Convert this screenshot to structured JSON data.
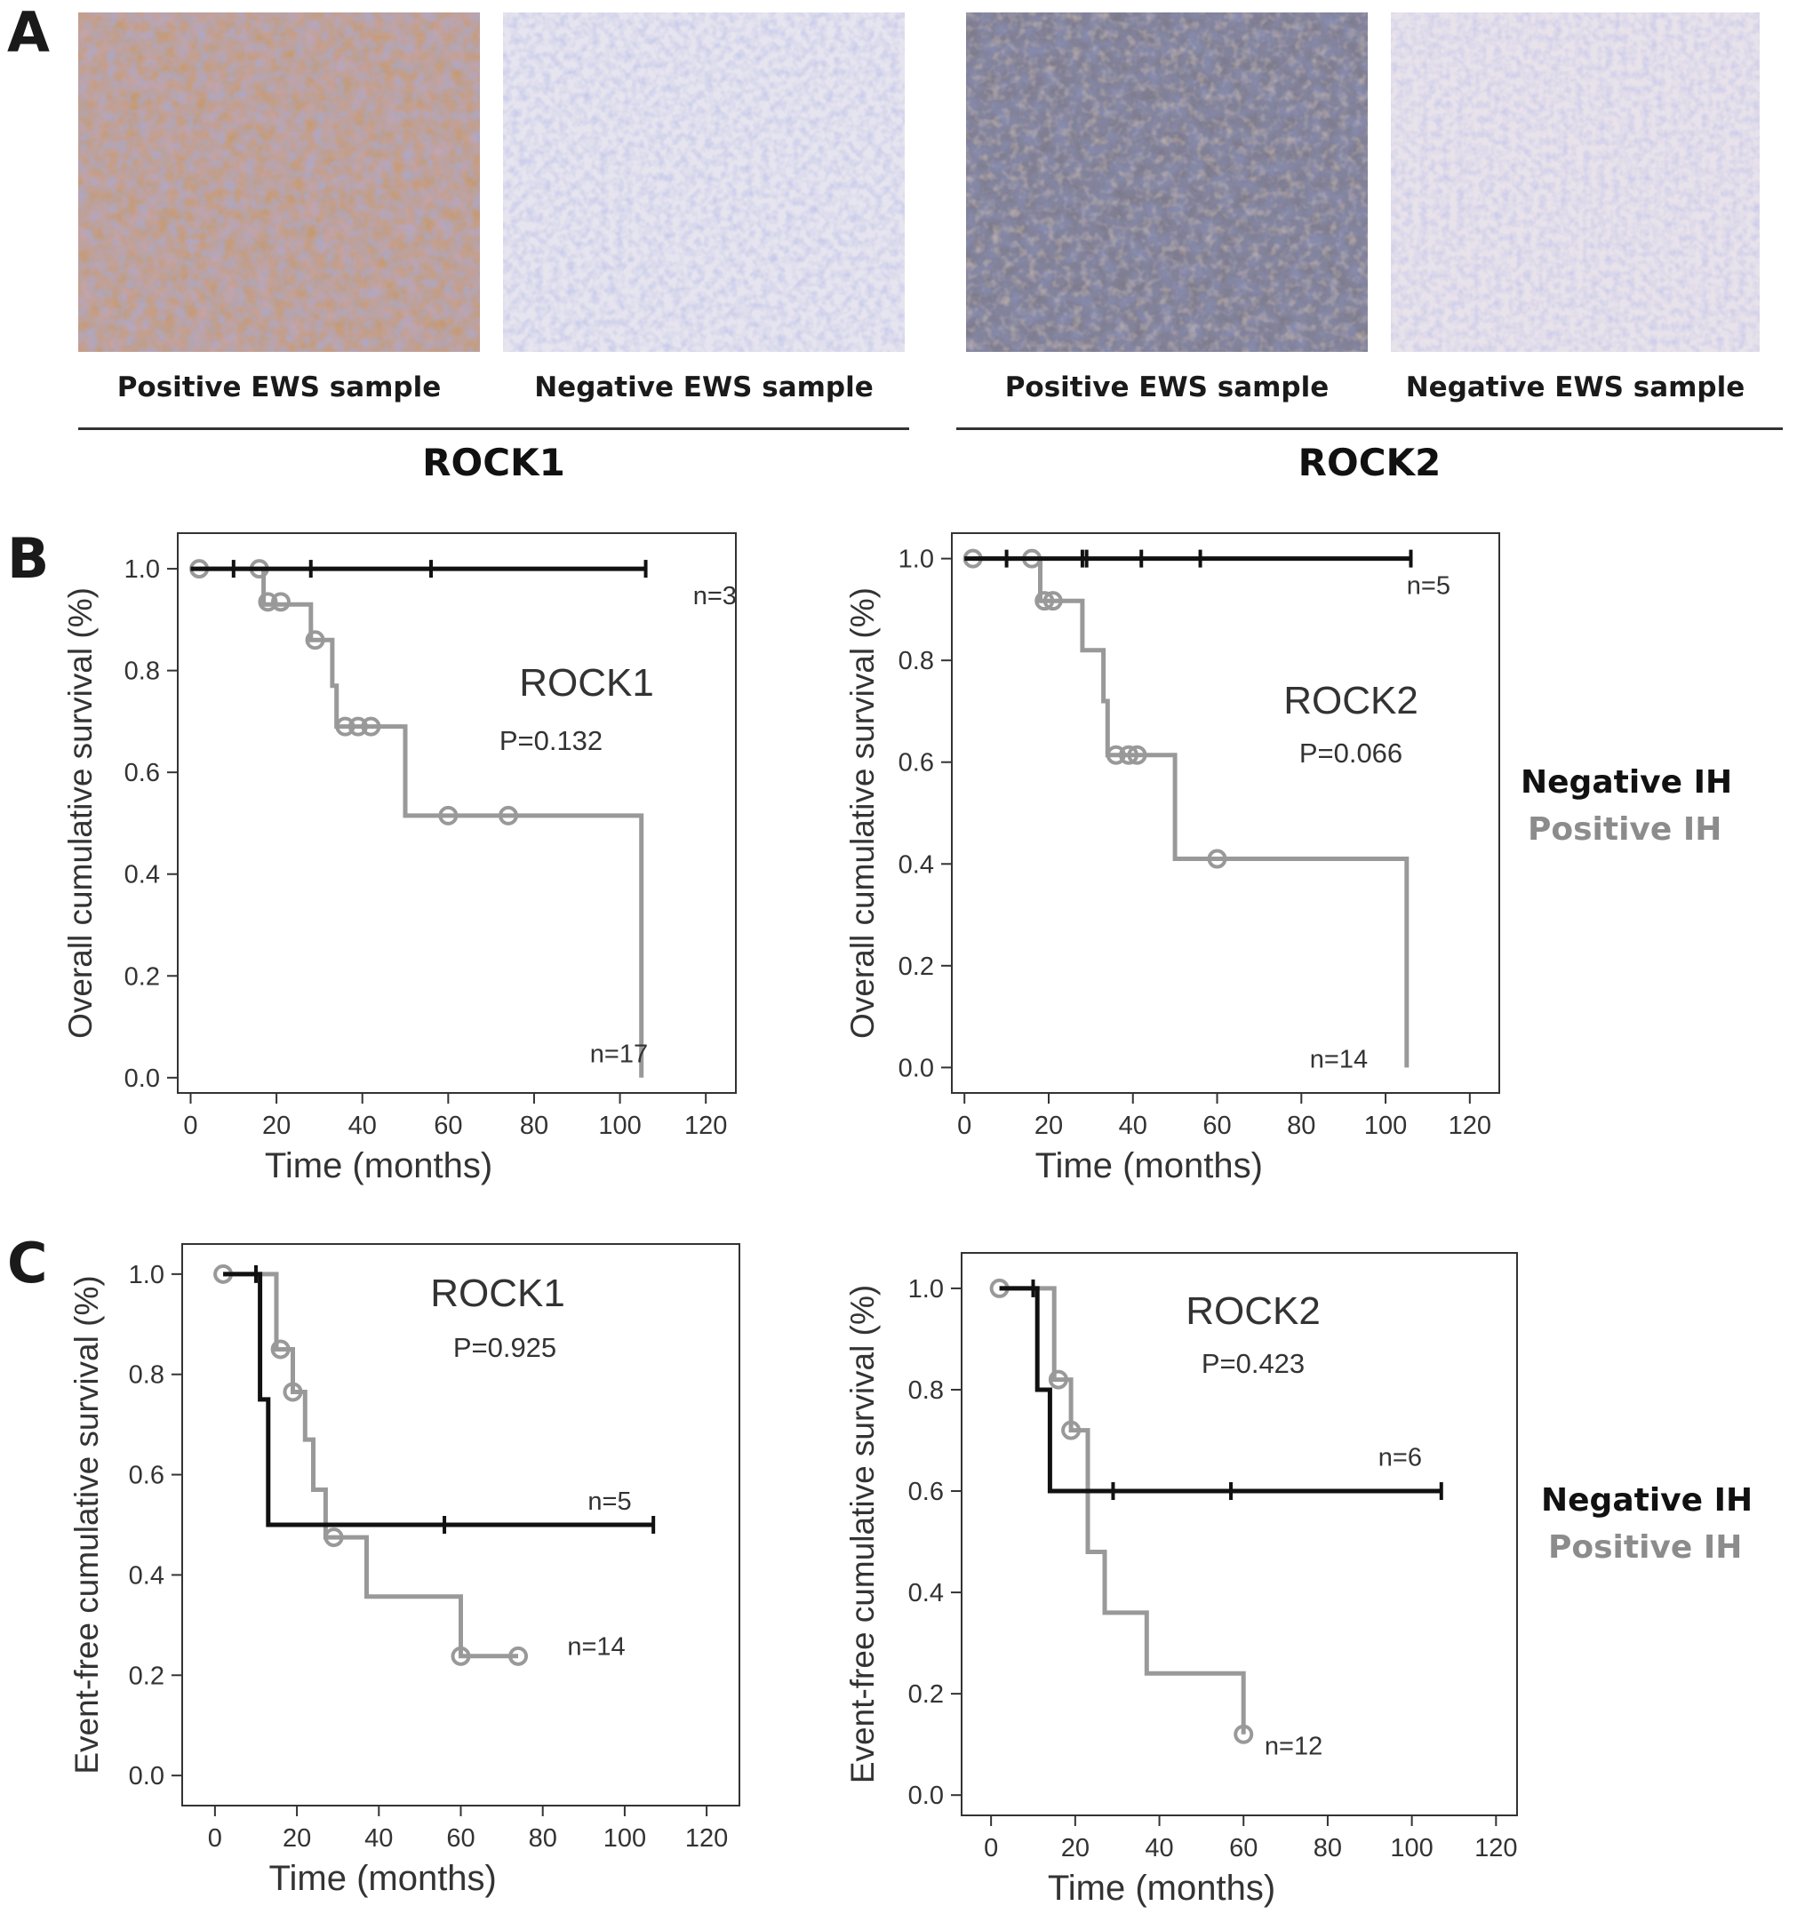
{
  "panels": {
    "a": "A",
    "b": "B",
    "c": "C"
  },
  "panel_a": {
    "captions": [
      "Positive EWS sample",
      "Negative EWS sample",
      "Positive EWS sample",
      "Negative EWS sample"
    ],
    "groups": [
      "ROCK1",
      "ROCK2"
    ]
  },
  "legend": {
    "negative": {
      "label": "Negative IH",
      "color": "#111111"
    },
    "positive": {
      "label": "Positive IH",
      "color": "#8c8c8c"
    }
  },
  "colors": {
    "negative": "#111111",
    "positive": "#999999"
  },
  "chart_data": [
    {
      "type": "line",
      "panel": "B",
      "title": "ROCK1",
      "pvalue": "P=0.132",
      "xlabel": "Time (months)",
      "ylabel": "Overall cumulative survival (%)",
      "xlim": [
        -3,
        127
      ],
      "ylim": [
        -0.03,
        1.07
      ],
      "xticks": [
        0,
        20,
        40,
        60,
        80,
        100,
        120
      ],
      "yticks": [
        "0.0",
        "0.2",
        "0.4",
        "0.6",
        "0.8",
        "1.0"
      ],
      "series": [
        {
          "name": "Negative IH",
          "color": "#111111",
          "n_label": "n=3",
          "n_pos": [
            117,
            0.93
          ],
          "steps": [
            [
              0,
              1.0
            ],
            [
              106,
              1.0
            ]
          ],
          "censor_ticks": [
            [
              10,
              1.0
            ],
            [
              28,
              1.0
            ],
            [
              56,
              1.0
            ],
            [
              106,
              1.0
            ]
          ],
          "censor_circles": []
        },
        {
          "name": "Positive IH",
          "color": "#999999",
          "n_label": "n=17",
          "n_pos": [
            93,
            0.03
          ],
          "steps": [
            [
              2,
              1.0
            ],
            [
              17,
              1.0
            ],
            [
              17,
              0.93
            ],
            [
              28,
              0.93
            ],
            [
              28,
              0.86
            ],
            [
              33,
              0.86
            ],
            [
              33,
              0.77
            ],
            [
              34,
              0.77
            ],
            [
              34,
              0.69
            ],
            [
              50,
              0.69
            ],
            [
              50,
              0.515
            ],
            [
              105,
              0.515
            ],
            [
              105,
              0.0
            ]
          ],
          "censor_ticks": [],
          "censor_circles": [
            [
              2,
              1.0
            ],
            [
              16,
              1.0
            ],
            [
              18,
              0.935
            ],
            [
              21,
              0.935
            ],
            [
              29,
              0.86
            ],
            [
              36,
              0.69
            ],
            [
              39,
              0.69
            ],
            [
              42,
              0.69
            ],
            [
              60,
              0.515
            ],
            [
              74,
              0.515
            ]
          ]
        }
      ]
    },
    {
      "type": "line",
      "panel": "B",
      "title": "ROCK2",
      "pvalue": "P=0.066",
      "xlabel": "Time (months)",
      "ylabel": "Overall cumulative survival (%)",
      "xlim": [
        -3,
        127
      ],
      "ylim": [
        -0.05,
        1.05
      ],
      "xticks": [
        0,
        20,
        40,
        60,
        80,
        100,
        120
      ],
      "yticks": [
        "0.0",
        "0.2",
        "0.4",
        "0.6",
        "0.8",
        "1.0"
      ],
      "series": [
        {
          "name": "Negative IH",
          "color": "#111111",
          "n_label": "n=5",
          "n_pos": [
            105,
            0.93
          ],
          "steps": [
            [
              0,
              1.0
            ],
            [
              106,
              1.0
            ]
          ],
          "censor_ticks": [
            [
              10,
              1.0
            ],
            [
              28,
              1.0
            ],
            [
              29,
              1.0
            ],
            [
              42,
              1.0
            ],
            [
              56,
              1.0
            ],
            [
              106,
              1.0
            ]
          ],
          "censor_circles": []
        },
        {
          "name": "Positive IH",
          "color": "#999999",
          "n_label": "n=14",
          "n_pos": [
            82,
            0.0
          ],
          "steps": [
            [
              2,
              1.0
            ],
            [
              18,
              1.0
            ],
            [
              18,
              0.917
            ],
            [
              28,
              0.917
            ],
            [
              28,
              0.82
            ],
            [
              33,
              0.82
            ],
            [
              33,
              0.72
            ],
            [
              34,
              0.72
            ],
            [
              34,
              0.614
            ],
            [
              50,
              0.614
            ],
            [
              50,
              0.41
            ],
            [
              105,
              0.41
            ],
            [
              105,
              0.0
            ]
          ],
          "censor_ticks": [],
          "censor_circles": [
            [
              2,
              1.0
            ],
            [
              16,
              1.0
            ],
            [
              19,
              0.917
            ],
            [
              21,
              0.917
            ],
            [
              36,
              0.614
            ],
            [
              39,
              0.614
            ],
            [
              41,
              0.614
            ],
            [
              60,
              0.41
            ]
          ]
        }
      ]
    },
    {
      "type": "line",
      "panel": "C",
      "title": "ROCK1",
      "pvalue": "P=0.925",
      "xlabel": "Time (months)",
      "ylabel": "Event-free cumulative survival (%)",
      "xlim": [
        -8,
        128
      ],
      "ylim": [
        -0.06,
        1.06
      ],
      "xticks": [
        0,
        20,
        40,
        60,
        80,
        100,
        120
      ],
      "yticks": [
        "0.0",
        "0.2",
        "0.4",
        "0.6",
        "0.8",
        "1.0"
      ],
      "series": [
        {
          "name": "Negative IH",
          "color": "#111111",
          "n_label": "n=5",
          "n_pos": [
            91,
            0.53
          ],
          "steps": [
            [
              2,
              1.0
            ],
            [
              11,
              1.0
            ],
            [
              11,
              0.75
            ],
            [
              13,
              0.75
            ],
            [
              13,
              0.5
            ],
            [
              107,
              0.5
            ]
          ],
          "censor_ticks": [
            [
              10,
              1.0
            ],
            [
              56,
              0.5
            ],
            [
              107,
              0.5
            ]
          ],
          "censor_circles": []
        },
        {
          "name": "Positive IH",
          "color": "#999999",
          "n_label": "n=14",
          "n_pos": [
            86,
            0.24
          ],
          "steps": [
            [
              2,
              1.0
            ],
            [
              15,
              1.0
            ],
            [
              15,
              0.85
            ],
            [
              19,
              0.85
            ],
            [
              19,
              0.765
            ],
            [
              22,
              0.765
            ],
            [
              22,
              0.67
            ],
            [
              24,
              0.67
            ],
            [
              24,
              0.57
            ],
            [
              27,
              0.57
            ],
            [
              27,
              0.475
            ],
            [
              37,
              0.475
            ],
            [
              37,
              0.357
            ],
            [
              60,
              0.357
            ],
            [
              60,
              0.238
            ],
            [
              74,
              0.238
            ]
          ],
          "censor_ticks": [],
          "censor_circles": [
            [
              2,
              1.0
            ],
            [
              16,
              0.85
            ],
            [
              19,
              0.765
            ],
            [
              29,
              0.475
            ],
            [
              60,
              0.238
            ],
            [
              74,
              0.238
            ]
          ]
        }
      ]
    },
    {
      "type": "line",
      "panel": "C",
      "title": "ROCK2",
      "pvalue": "P=0.423",
      "xlabel": "Time (months)",
      "ylabel": "Event-free cumulative survival (%)",
      "xlim": [
        -7,
        125
      ],
      "ylim": [
        -0.04,
        1.07
      ],
      "xticks": [
        0,
        20,
        40,
        60,
        80,
        100,
        120
      ],
      "yticks": [
        "0.0",
        "0.2",
        "0.4",
        "0.6",
        "0.8",
        "1.0"
      ],
      "series": [
        {
          "name": "Negative IH",
          "color": "#111111",
          "n_label": "n=6",
          "n_pos": [
            92,
            0.65
          ],
          "steps": [
            [
              2,
              1.0
            ],
            [
              11,
              1.0
            ],
            [
              11,
              0.8
            ],
            [
              14,
              0.8
            ],
            [
              14,
              0.6
            ],
            [
              107,
              0.6
            ]
          ],
          "censor_ticks": [
            [
              10,
              1.0
            ],
            [
              29,
              0.6
            ],
            [
              57,
              0.6
            ],
            [
              107,
              0.6
            ]
          ],
          "censor_circles": []
        },
        {
          "name": "Positive IH",
          "color": "#999999",
          "n_label": "n=12",
          "n_pos": [
            65,
            0.08
          ],
          "steps": [
            [
              2,
              1.0
            ],
            [
              15,
              1.0
            ],
            [
              15,
              0.82
            ],
            [
              19,
              0.82
            ],
            [
              19,
              0.72
            ],
            [
              23,
              0.72
            ],
            [
              23,
              0.48
            ],
            [
              27,
              0.48
            ],
            [
              27,
              0.36
            ],
            [
              37,
              0.36
            ],
            [
              37,
              0.24
            ],
            [
              60,
              0.24
            ],
            [
              60,
              0.12
            ]
          ],
          "censor_ticks": [],
          "censor_circles": [
            [
              2,
              1.0
            ],
            [
              16,
              0.82
            ],
            [
              19,
              0.72
            ],
            [
              60,
              0.12
            ]
          ]
        }
      ]
    }
  ]
}
